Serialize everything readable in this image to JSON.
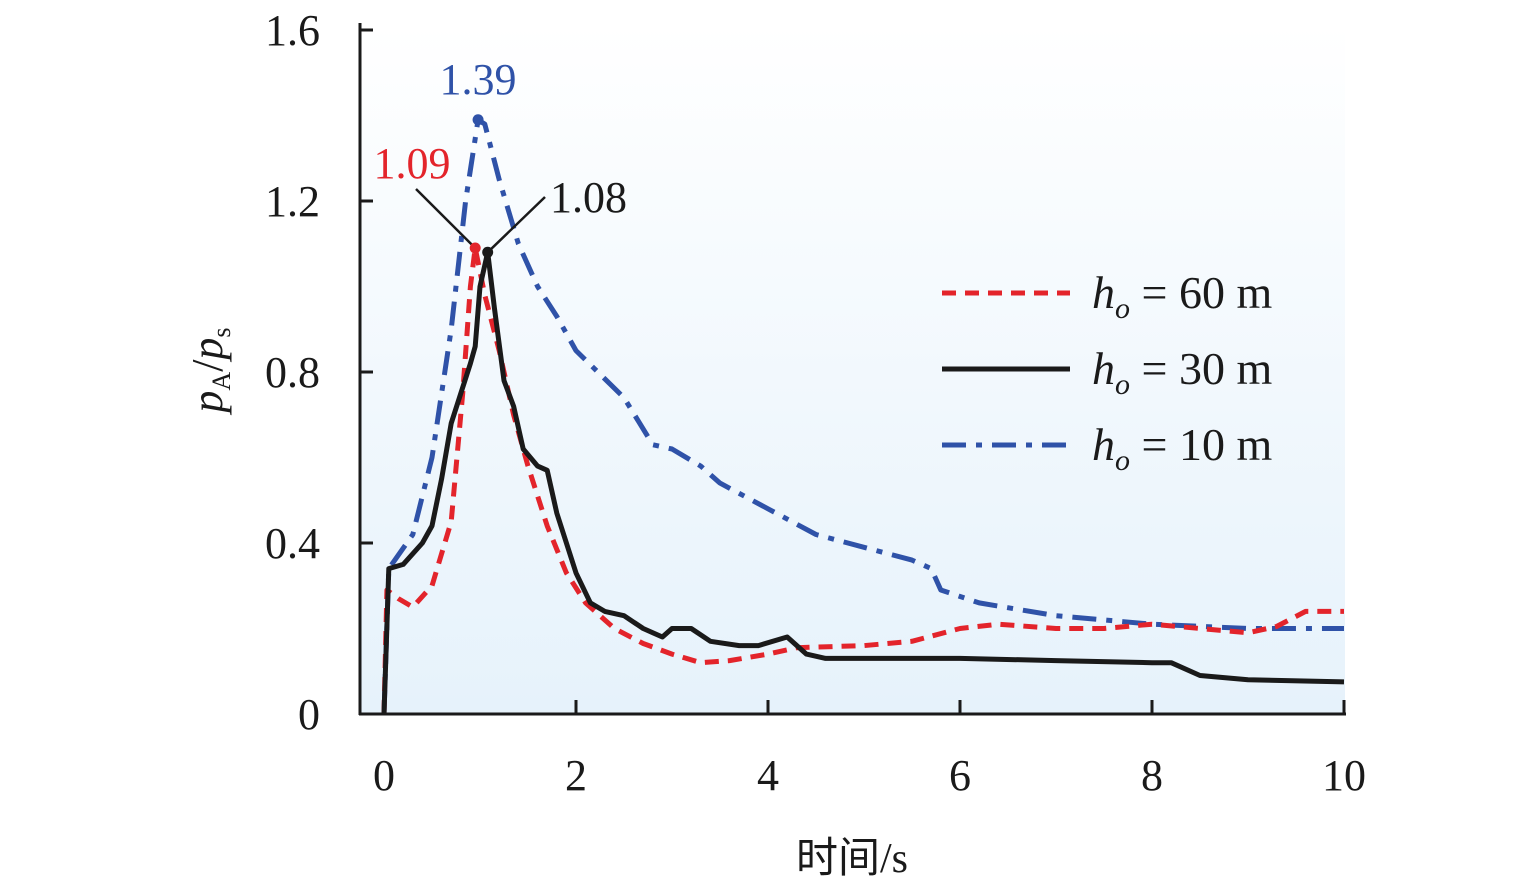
{
  "chart_data": {
    "type": "line",
    "xlabel": "时间/s",
    "ylabel": {
      "main1": "p",
      "sub1": "A",
      "sep": "/",
      "main2": "p",
      "sub2": "s"
    },
    "xlim": [
      0,
      10
    ],
    "ylim": [
      0,
      1.6
    ],
    "xticks": [
      0,
      2,
      4,
      6,
      8,
      10
    ],
    "xtick_labels": [
      "0",
      "2",
      "4",
      "6",
      "8",
      "10"
    ],
    "yticks": [
      0,
      0.4,
      0.8,
      1.2,
      1.6
    ],
    "ytick_labels": [
      "0",
      "0.4",
      "0.8",
      "1.2",
      "1.6"
    ],
    "grid": false,
    "legend_position": "right",
    "series": [
      {
        "name": "h_o = 60 m",
        "legend_var": "h",
        "legend_sub": "o",
        "legend_rest": " = 60 m",
        "color": "#e3242b",
        "style": "dashed",
        "peak": {
          "x": 0.95,
          "y": 1.09,
          "label": "1.09"
        },
        "points": [
          [
            0,
            0
          ],
          [
            0.03,
            0.29
          ],
          [
            0.15,
            0.27
          ],
          [
            0.3,
            0.25
          ],
          [
            0.5,
            0.3
          ],
          [
            0.7,
            0.45
          ],
          [
            0.82,
            0.75
          ],
          [
            0.9,
            1.0
          ],
          [
            0.95,
            1.09
          ],
          [
            1.05,
            0.98
          ],
          [
            1.2,
            0.85
          ],
          [
            1.35,
            0.7
          ],
          [
            1.5,
            0.58
          ],
          [
            1.7,
            0.44
          ],
          [
            1.9,
            0.33
          ],
          [
            2.1,
            0.26
          ],
          [
            2.4,
            0.2
          ],
          [
            2.7,
            0.165
          ],
          [
            3.0,
            0.14
          ],
          [
            3.3,
            0.12
          ],
          [
            3.6,
            0.125
          ],
          [
            4.0,
            0.14
          ],
          [
            4.3,
            0.155
          ],
          [
            5.0,
            0.16
          ],
          [
            5.5,
            0.17
          ],
          [
            6.0,
            0.2
          ],
          [
            6.4,
            0.21
          ],
          [
            7.0,
            0.2
          ],
          [
            7.5,
            0.2
          ],
          [
            8.0,
            0.21
          ],
          [
            8.5,
            0.2
          ],
          [
            9.0,
            0.19
          ],
          [
            9.3,
            0.205
          ],
          [
            9.6,
            0.24
          ],
          [
            10,
            0.24
          ]
        ]
      },
      {
        "name": "h_o = 30 m",
        "legend_var": "h",
        "legend_sub": "o",
        "legend_rest": " = 30 m",
        "color": "#1a1a1a",
        "style": "solid",
        "peak": {
          "x": 1.08,
          "y": 1.08,
          "label": "1.08"
        },
        "points": [
          [
            0,
            0
          ],
          [
            0.05,
            0.34
          ],
          [
            0.2,
            0.35
          ],
          [
            0.4,
            0.4
          ],
          [
            0.5,
            0.44
          ],
          [
            0.6,
            0.55
          ],
          [
            0.7,
            0.68
          ],
          [
            0.8,
            0.75
          ],
          [
            0.9,
            0.82
          ],
          [
            0.95,
            0.86
          ],
          [
            1.0,
            1.0
          ],
          [
            1.08,
            1.08
          ],
          [
            1.15,
            0.95
          ],
          [
            1.25,
            0.78
          ],
          [
            1.35,
            0.72
          ],
          [
            1.45,
            0.62
          ],
          [
            1.6,
            0.58
          ],
          [
            1.7,
            0.57
          ],
          [
            1.8,
            0.47
          ],
          [
            2.0,
            0.33
          ],
          [
            2.15,
            0.26
          ],
          [
            2.3,
            0.24
          ],
          [
            2.5,
            0.23
          ],
          [
            2.7,
            0.2
          ],
          [
            2.9,
            0.18
          ],
          [
            3.0,
            0.2
          ],
          [
            3.2,
            0.2
          ],
          [
            3.4,
            0.17
          ],
          [
            3.7,
            0.16
          ],
          [
            3.9,
            0.16
          ],
          [
            4.2,
            0.18
          ],
          [
            4.4,
            0.14
          ],
          [
            4.6,
            0.13
          ],
          [
            5.0,
            0.13
          ],
          [
            5.5,
            0.13
          ],
          [
            6.0,
            0.13
          ],
          [
            7.0,
            0.125
          ],
          [
            8.0,
            0.12
          ],
          [
            8.2,
            0.12
          ],
          [
            8.5,
            0.09
          ],
          [
            9.0,
            0.08
          ],
          [
            10,
            0.075
          ]
        ]
      },
      {
        "name": "h_o = 10 m",
        "legend_var": "h",
        "legend_sub": "o",
        "legend_rest": " = 10 m",
        "color": "#2f52a8",
        "style": "dashdot",
        "peak": {
          "x": 0.98,
          "y": 1.39,
          "label": "1.39"
        },
        "points": [
          [
            0,
            0
          ],
          [
            0.05,
            0.34
          ],
          [
            0.3,
            0.42
          ],
          [
            0.5,
            0.6
          ],
          [
            0.7,
            0.9
          ],
          [
            0.85,
            1.2
          ],
          [
            0.98,
            1.39
          ],
          [
            1.05,
            1.38
          ],
          [
            1.2,
            1.25
          ],
          [
            1.4,
            1.1
          ],
          [
            1.6,
            1.0
          ],
          [
            1.8,
            0.93
          ],
          [
            2.0,
            0.85
          ],
          [
            2.5,
            0.74
          ],
          [
            2.8,
            0.63
          ],
          [
            3.0,
            0.62
          ],
          [
            3.3,
            0.58
          ],
          [
            3.5,
            0.54
          ],
          [
            4.0,
            0.48
          ],
          [
            4.5,
            0.42
          ],
          [
            5.0,
            0.39
          ],
          [
            5.5,
            0.36
          ],
          [
            5.7,
            0.34
          ],
          [
            5.8,
            0.29
          ],
          [
            6.2,
            0.26
          ],
          [
            7.0,
            0.23
          ],
          [
            8.0,
            0.21
          ],
          [
            9.0,
            0.2
          ],
          [
            10,
            0.2
          ]
        ]
      }
    ]
  }
}
